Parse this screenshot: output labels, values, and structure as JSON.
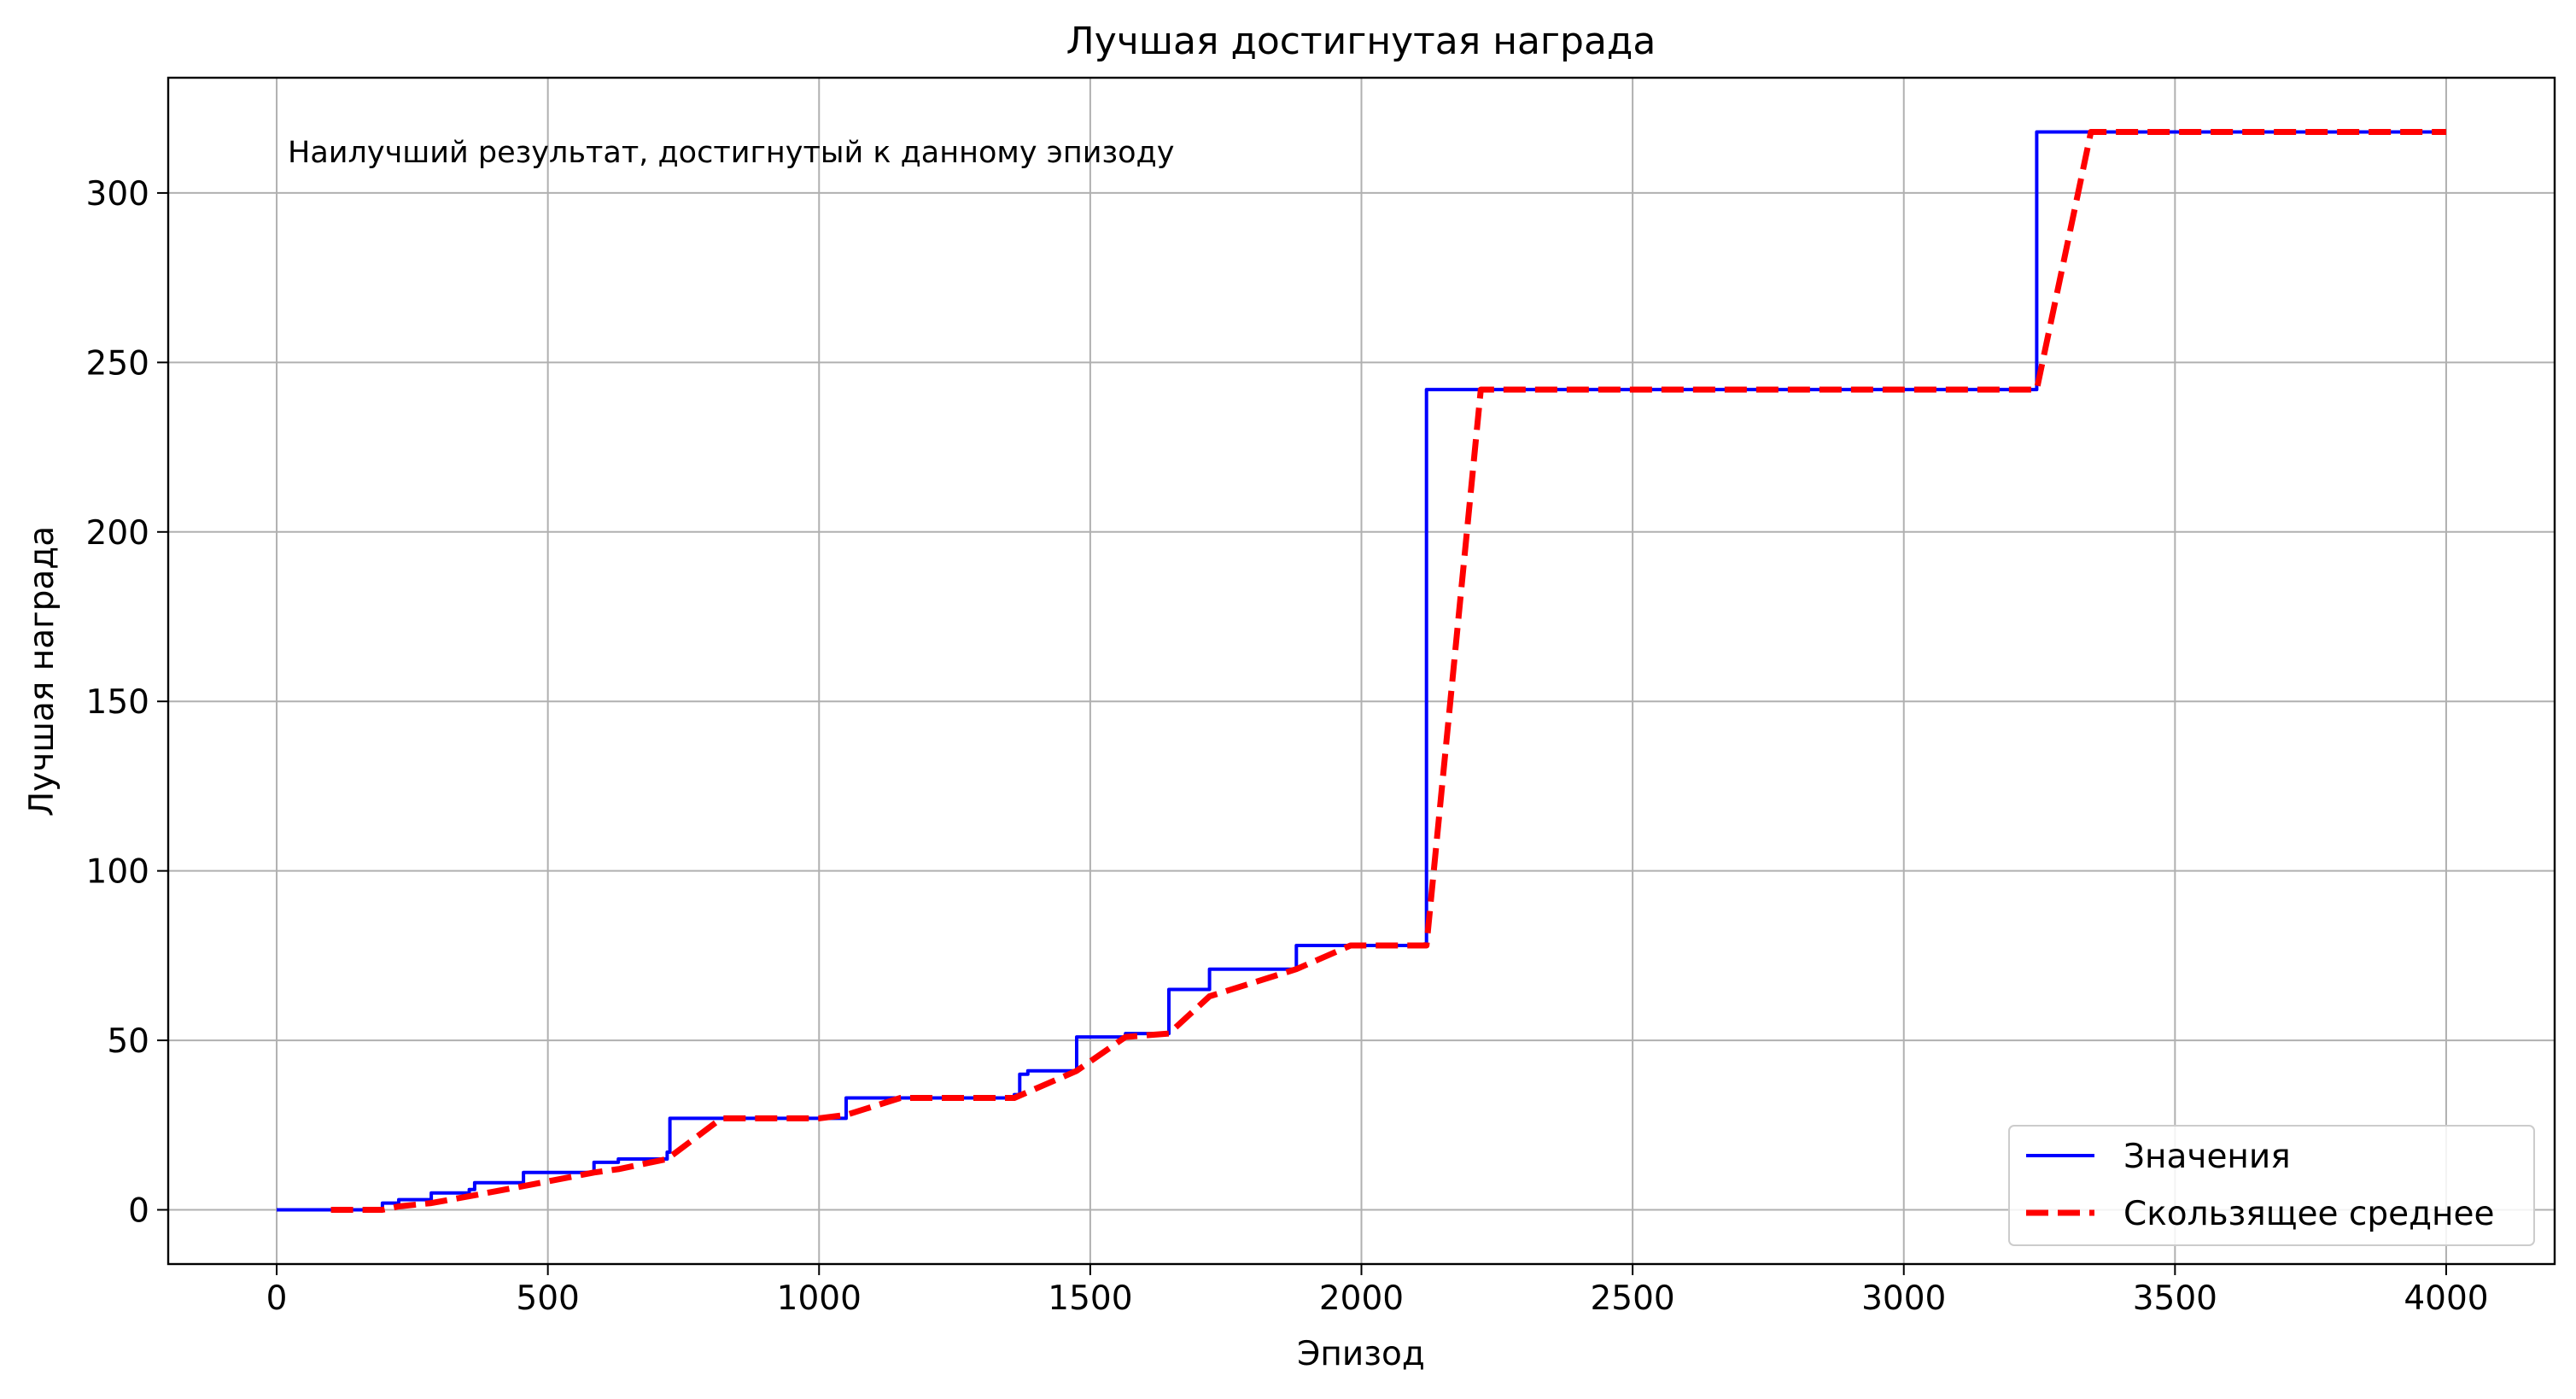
{
  "chart_data": {
    "type": "line",
    "title": "Лучшая достигнутая награда",
    "xlabel": "Эпизод",
    "ylabel": "Лучшая награда",
    "annotation": "Наилучший результат, достигнутый к данному эпизоду",
    "xlim": [
      -200,
      4200
    ],
    "ylim": [
      -16,
      334
    ],
    "xticks": [
      0,
      500,
      1000,
      1500,
      2000,
      2500,
      3000,
      3500,
      4000
    ],
    "yticks": [
      0,
      50,
      100,
      150,
      200,
      250,
      300
    ],
    "grid": true,
    "legend_position": "lower-right",
    "series": [
      {
        "name": "Значения",
        "color": "#0000ff",
        "style": "solid",
        "step": true,
        "points": [
          [
            0,
            0
          ],
          [
            195,
            0
          ],
          [
            195,
            2
          ],
          [
            225,
            2
          ],
          [
            225,
            3
          ],
          [
            285,
            3
          ],
          [
            285,
            5
          ],
          [
            355,
            5
          ],
          [
            355,
            6
          ],
          [
            365,
            6
          ],
          [
            365,
            8
          ],
          [
            455,
            8
          ],
          [
            455,
            11
          ],
          [
            585,
            11
          ],
          [
            585,
            14
          ],
          [
            630,
            14
          ],
          [
            630,
            15
          ],
          [
            720,
            15
          ],
          [
            720,
            17
          ],
          [
            725,
            17
          ],
          [
            725,
            27
          ],
          [
            1050,
            27
          ],
          [
            1050,
            33
          ],
          [
            1360,
            33
          ],
          [
            1360,
            34
          ],
          [
            1370,
            34
          ],
          [
            1370,
            40
          ],
          [
            1385,
            40
          ],
          [
            1385,
            41
          ],
          [
            1475,
            41
          ],
          [
            1475,
            51
          ],
          [
            1565,
            51
          ],
          [
            1565,
            52
          ],
          [
            1645,
            52
          ],
          [
            1645,
            65
          ],
          [
            1720,
            65
          ],
          [
            1720,
            71
          ],
          [
            1880,
            71
          ],
          [
            1880,
            78
          ],
          [
            2120,
            78
          ],
          [
            2120,
            242
          ],
          [
            3245,
            242
          ],
          [
            3245,
            318
          ],
          [
            4000,
            318
          ]
        ]
      },
      {
        "name": "Скользящее среднее",
        "color": "#ff0000",
        "style": "dashed",
        "step": false,
        "points": [
          [
            100,
            0
          ],
          [
            195,
            0
          ],
          [
            225,
            1
          ],
          [
            285,
            2
          ],
          [
            355,
            4
          ],
          [
            455,
            7
          ],
          [
            585,
            11
          ],
          [
            630,
            12
          ],
          [
            720,
            15
          ],
          [
            820,
            27
          ],
          [
            1000,
            27
          ],
          [
            1050,
            28
          ],
          [
            1150,
            33
          ],
          [
            1360,
            33
          ],
          [
            1475,
            41
          ],
          [
            1565,
            51
          ],
          [
            1645,
            52
          ],
          [
            1720,
            63
          ],
          [
            1880,
            71
          ],
          [
            1980,
            78
          ],
          [
            2120,
            78
          ],
          [
            2220,
            242
          ],
          [
            3245,
            242
          ],
          [
            3345,
            318
          ],
          [
            4000,
            318
          ]
        ]
      }
    ]
  }
}
